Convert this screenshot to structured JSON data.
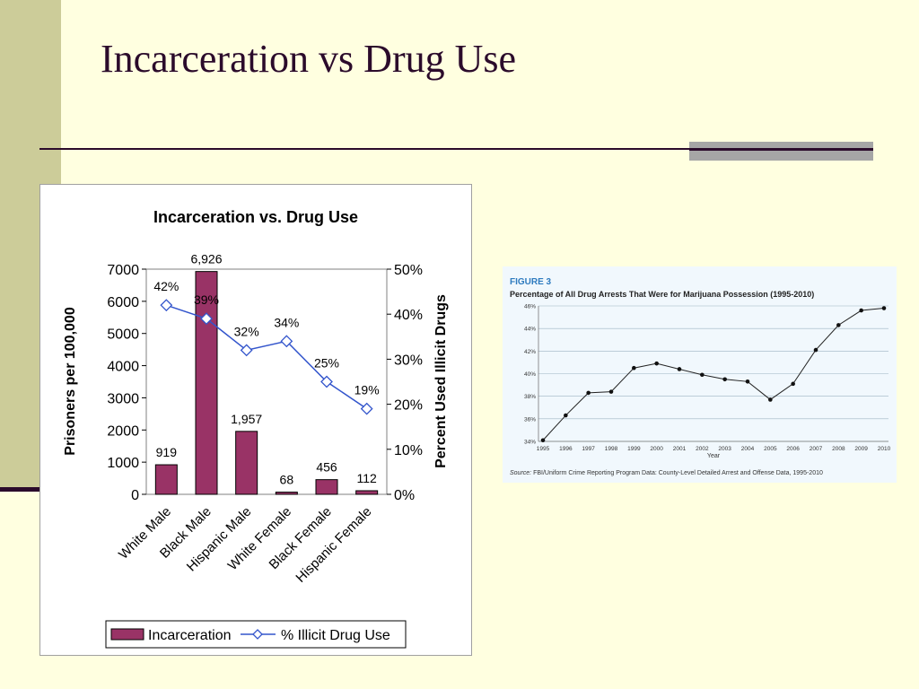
{
  "slide": {
    "title": "Incarceration vs Drug Use",
    "colors": {
      "background": "#FFFFE0",
      "band": "#CCCC99",
      "title": "#2B0B2B",
      "accent": "#A6A6A6"
    }
  },
  "chart_data": [
    {
      "type": "bar",
      "title": "Incarceration vs. Drug Use",
      "categories": [
        "White Male",
        "Black Male",
        "Hispanic Male",
        "White Female",
        "Black Female",
        "Hispanic Female"
      ],
      "y_left_label": "Prisoners per 100,000",
      "y_right_label": "Percent Used Illicit Drugs",
      "ylim_left": [
        0,
        7000
      ],
      "ylim_right": [
        0,
        50
      ],
      "y_left_ticks": [
        "0",
        "1000",
        "2000",
        "3000",
        "4000",
        "5000",
        "6000",
        "7000"
      ],
      "y_right_ticks": [
        "0%",
        "10%",
        "20%",
        "30%",
        "40%",
        "50%"
      ],
      "series": [
        {
          "name": "Incarceration",
          "type": "bar",
          "axis": "left",
          "color": "#993366",
          "values": [
            919,
            6926,
            1957,
            68,
            456,
            112
          ],
          "labels": [
            "919",
            "6,926",
            "1,957",
            "68",
            "456",
            "112"
          ]
        },
        {
          "name": "% Illicit Drug Use",
          "type": "line",
          "axis": "right",
          "color": "#3355CC",
          "values": [
            42,
            39,
            32,
            34,
            25,
            19
          ],
          "labels": [
            "42%",
            "39%",
            "32%",
            "34%",
            "25%",
            "19%"
          ]
        }
      ],
      "legend_position": "bottom",
      "grid": false
    },
    {
      "type": "line",
      "figure_label": "FIGURE 3",
      "title": "Percentage of All Drug Arrests That Were for Marijuana Possession (1995-2010)",
      "xlabel": "Year",
      "x": [
        "1995",
        "1996",
        "1997",
        "1998",
        "1999",
        "2000",
        "2001",
        "2002",
        "2003",
        "2004",
        "2005",
        "2006",
        "2007",
        "2008",
        "2009",
        "2010"
      ],
      "series": [
        {
          "values": [
            34.1,
            36.3,
            38.3,
            38.4,
            40.5,
            40.9,
            40.4,
            39.9,
            39.5,
            39.3,
            37.7,
            39.1,
            42.1,
            44.3,
            45.6,
            45.8
          ]
        }
      ],
      "y_ticks": [
        "34%",
        "36%",
        "38%",
        "40%",
        "42%",
        "44%",
        "46%"
      ],
      "ylim": [
        34,
        46
      ],
      "grid": true,
      "source_label": "Source:",
      "source_text": " FBI/Uniform Crime Reporting Program Data: County-Level Detailed Arrest and Offense Data, 1995-2010"
    }
  ]
}
